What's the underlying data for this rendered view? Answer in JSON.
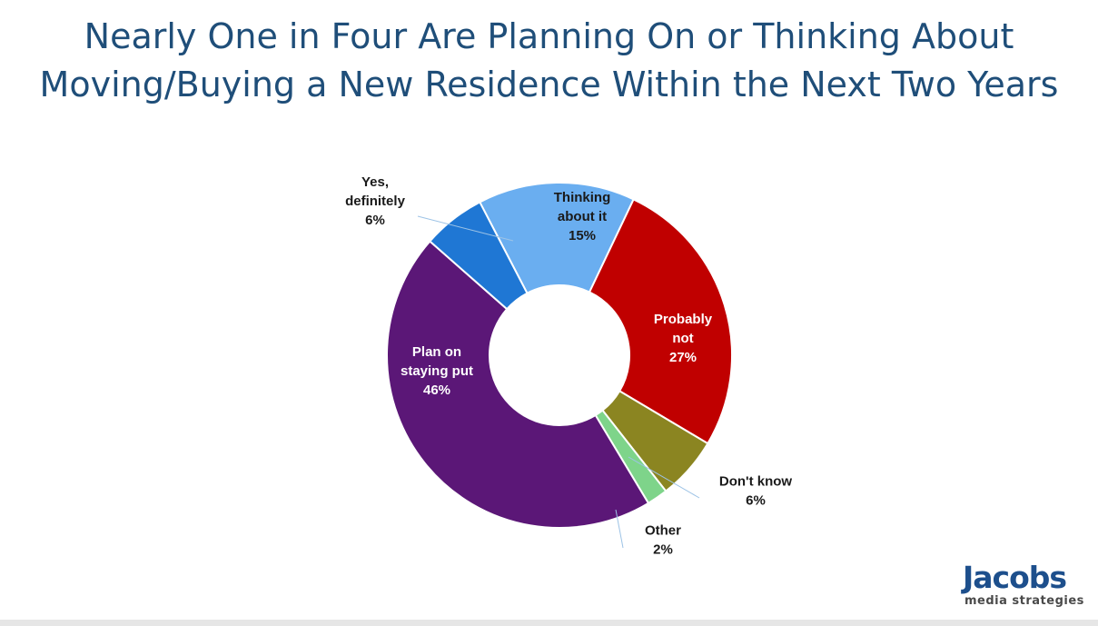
{
  "title_line1": "Nearly One in Four Are Planning On or Thinking About",
  "title_line2": "Moving/Buying a New Residence Within the Next Two Years",
  "logo": {
    "name": "Jacobs",
    "tagline": "media strategies"
  },
  "chart_data": {
    "type": "pie",
    "donut": true,
    "title": "Nearly One in Four Are Planning On or Thinking About Moving/Buying a New Residence Within the Next Two Years",
    "slices": [
      {
        "label_lines": [
          "Thinking",
          "about it"
        ],
        "value_label": "15%",
        "value": 15,
        "color": "#6aaef0",
        "label_color": "#1a1a1a"
      },
      {
        "label_lines": [
          "Probably",
          "not"
        ],
        "value_label": "27%",
        "value": 27,
        "color": "#c00000",
        "label_color": "#ffffff"
      },
      {
        "label_lines": [
          "Don't know"
        ],
        "value_label": "6%",
        "value": 6,
        "color": "#8b8521",
        "label_color": "#1a1a1a"
      },
      {
        "label_lines": [
          "Other"
        ],
        "value_label": "2%",
        "value": 2,
        "color": "#7ed48a",
        "label_color": "#1a1a1a"
      },
      {
        "label_lines": [
          "Plan on",
          "staying put"
        ],
        "value_label": "46%",
        "value": 46,
        "color": "#5b1777",
        "label_color": "#ffffff"
      },
      {
        "label_lines": [
          "Yes,",
          "definitely"
        ],
        "value_label": "6%",
        "value": 6,
        "color": "#1f77d4",
        "label_color": "#1a1a1a"
      }
    ],
    "legend": "none",
    "label_position": "on slices, leader lines for small slices"
  }
}
